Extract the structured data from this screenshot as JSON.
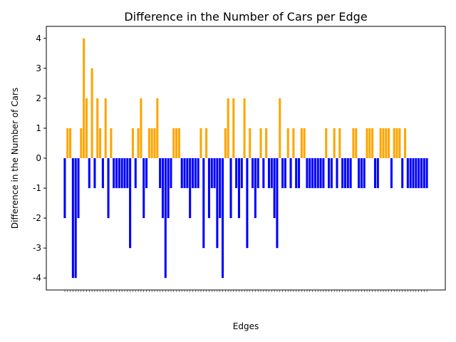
{
  "chart_data": {
    "type": "bar",
    "title": "Difference in the Number of Cars per Edge",
    "xlabel": "Edges",
    "ylabel": "Difference in the Number of Cars",
    "ylim": [
      -4.4,
      4.4
    ],
    "yticks": [
      -4,
      -3,
      -2,
      -1,
      0,
      1,
      2,
      3,
      4
    ],
    "grid": false,
    "legend": "none",
    "colors": {
      "positive": "#FFA500",
      "negative": "#0000FF"
    },
    "values": [
      -2,
      1,
      1,
      -4,
      -4,
      -2,
      1,
      4,
      2,
      -1,
      3,
      -1,
      2,
      1,
      -1,
      2,
      -2,
      1,
      -1,
      -1,
      -1,
      -1,
      -1,
      -1,
      -3,
      1,
      -1,
      1,
      2,
      -2,
      -1,
      1,
      1,
      1,
      2,
      -1,
      -2,
      -4,
      -2,
      -1,
      1,
      1,
      1,
      -1,
      -1,
      -1,
      -2,
      -1,
      -1,
      -1,
      1,
      -3,
      1,
      -2,
      -1,
      -1,
      -3,
      -2,
      -4,
      1,
      2,
      -2,
      2,
      -1,
      -2,
      -1,
      2,
      -3,
      1,
      -1,
      -2,
      -1,
      1,
      -1,
      1,
      -1,
      -1,
      -2,
      -3,
      2,
      -1,
      -1,
      1,
      -1,
      1,
      -1,
      -1,
      1,
      1,
      -1,
      -1,
      -1,
      -1,
      -1,
      -1,
      -1,
      1,
      -1,
      -1,
      1,
      -1,
      1,
      -1,
      -1,
      -1,
      -1,
      1,
      1,
      -1,
      -1,
      -1,
      1,
      1,
      1,
      -1,
      -1,
      1,
      1,
      1,
      1,
      -1,
      1,
      1,
      1,
      -1,
      1,
      -1,
      -1,
      -1,
      -1,
      -1,
      -1,
      -1,
      -1
    ]
  }
}
